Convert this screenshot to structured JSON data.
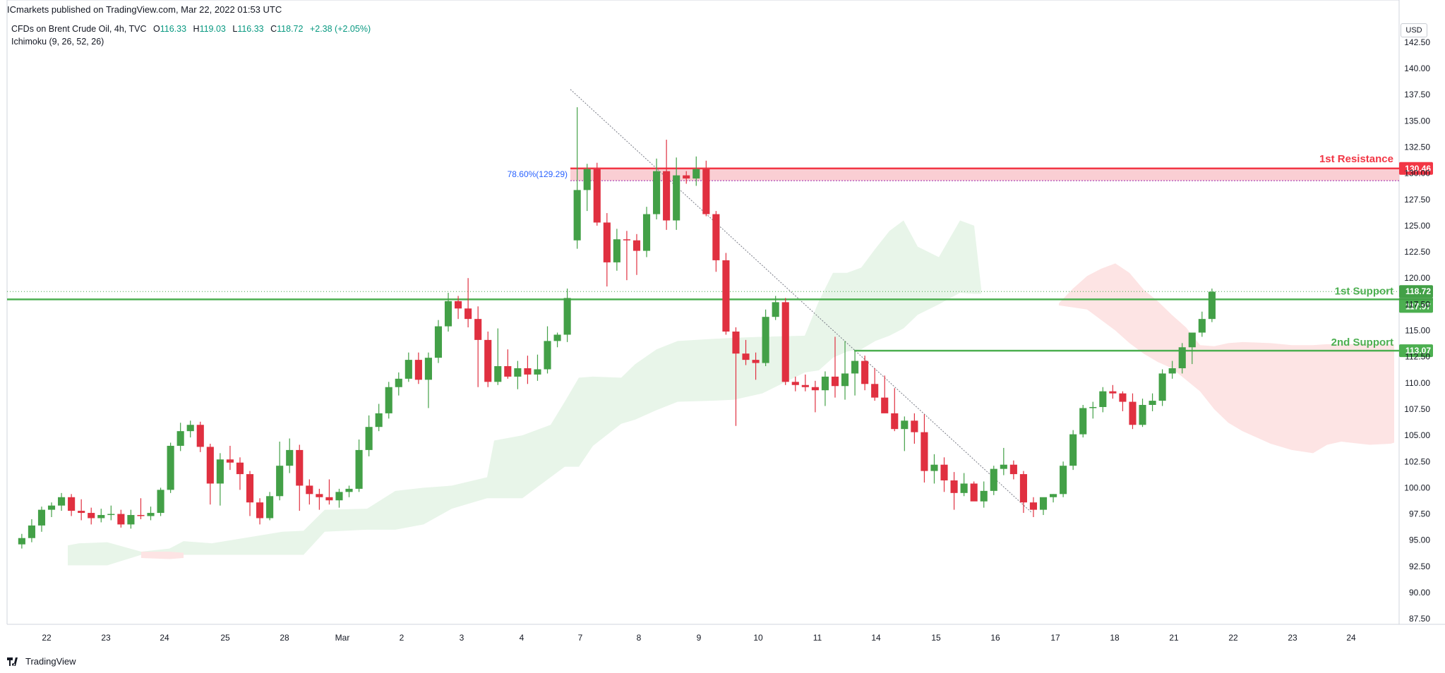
{
  "header": {
    "publisher_line": "ICmarkets published on TradingView.com, Mar 22, 2022 01:53 UTC"
  },
  "legend": {
    "symbol": "CFDs on Brent Crude Oil, 4h, TVC",
    "open_label": "O",
    "open": "116.33",
    "high_label": "H",
    "high": "119.03",
    "low_label": "L",
    "low": "116.33",
    "close_label": "C",
    "close": "118.72",
    "change": "+2.38 (+2.05%)",
    "indicator": "Ichimoku (9, 26, 52, 26)"
  },
  "currency": "USD",
  "footer": {
    "brand": "TradingView"
  },
  "colors": {
    "up": "#43a047",
    "down": "#e03040",
    "resistance": "#f23645",
    "support": "#4caf50",
    "cloud_green": "#e8f5e9",
    "cloud_red": "#fde4e4",
    "fib": "#2962ff",
    "price_line": "#43a047"
  },
  "chart_data": {
    "type": "candlestick",
    "y_ticks": [
      "87.50",
      "90.00",
      "92.50",
      "95.00",
      "97.50",
      "100.00",
      "102.50",
      "105.00",
      "107.50",
      "110.00",
      "112.50",
      "115.00",
      "117.50",
      "120.00",
      "122.50",
      "125.00",
      "127.50",
      "130.00",
      "132.50",
      "135.00",
      "137.50",
      "140.00",
      "142.50"
    ],
    "ylim": [
      86,
      143.5
    ],
    "x_ticks": [
      "22",
      "23",
      "24",
      "25",
      "28",
      "Mar",
      "2",
      "3",
      "4",
      "7",
      "8",
      "9",
      "10",
      "11",
      "14",
      "15",
      "16",
      "17",
      "18",
      "21",
      "22",
      "23",
      "24"
    ],
    "bars_per_day": 6,
    "annotations": {
      "resistance_label": "1st Resistance",
      "resistance_value": "130.46",
      "resistance": 130.46,
      "support1_label": "1st Support",
      "support1_value": "117.97",
      "support1": 117.97,
      "support2_label": "2nd Support",
      "support2_value": "113.07",
      "support2": 113.07,
      "fib_label": "78.60%(129.29)",
      "fib_value": 129.29,
      "last_price": "118.72",
      "last_price_value": 118.72,
      "countdown": "06:50"
    },
    "ohlc": [
      [
        94.6,
        95.6,
        94.2,
        95.2
      ],
      [
        95.2,
        97.0,
        94.8,
        96.4
      ],
      [
        96.4,
        98.2,
        95.8,
        97.9
      ],
      [
        97.9,
        98.6,
        97.2,
        98.3
      ],
      [
        98.3,
        99.5,
        97.8,
        99.1
      ],
      [
        99.1,
        99.4,
        97.3,
        97.8
      ],
      [
        97.8,
        98.9,
        96.9,
        97.6
      ],
      [
        97.6,
        98.1,
        96.5,
        97.1
      ],
      [
        97.1,
        98.0,
        96.7,
        97.4
      ],
      [
        97.4,
        98.3,
        96.9,
        97.5
      ],
      [
        97.5,
        97.9,
        96.2,
        96.5
      ],
      [
        96.5,
        97.9,
        96.1,
        97.4
      ],
      [
        97.4,
        99.0,
        97.0,
        97.3
      ],
      [
        97.3,
        98.2,
        96.9,
        97.6
      ],
      [
        97.6,
        100.0,
        97.3,
        99.8
      ],
      [
        99.8,
        104.3,
        99.5,
        104.0
      ],
      [
        104.0,
        106.2,
        103.5,
        105.4
      ],
      [
        105.4,
        106.4,
        104.8,
        106.0
      ],
      [
        106.0,
        106.3,
        103.4,
        103.9
      ],
      [
        103.9,
        104.2,
        98.4,
        100.4
      ],
      [
        100.4,
        103.3,
        98.3,
        102.7
      ],
      [
        102.7,
        104.0,
        101.7,
        102.4
      ],
      [
        102.4,
        102.9,
        99.8,
        101.3
      ],
      [
        101.3,
        101.6,
        97.3,
        98.6
      ],
      [
        98.6,
        99.0,
        96.5,
        97.1
      ],
      [
        97.1,
        99.6,
        96.9,
        99.2
      ],
      [
        99.2,
        104.4,
        98.8,
        102.1
      ],
      [
        102.1,
        104.7,
        101.4,
        103.6
      ],
      [
        103.6,
        104.1,
        97.8,
        100.2
      ],
      [
        100.2,
        100.8,
        98.4,
        99.4
      ],
      [
        99.4,
        99.9,
        97.9,
        99.1
      ],
      [
        99.1,
        100.8,
        98.4,
        98.8
      ],
      [
        98.8,
        99.9,
        98.1,
        99.6
      ],
      [
        99.6,
        100.2,
        99.1,
        99.9
      ],
      [
        99.9,
        104.6,
        99.6,
        103.6
      ],
      [
        103.6,
        106.9,
        103.0,
        105.8
      ],
      [
        105.8,
        108.0,
        105.4,
        107.1
      ],
      [
        107.1,
        110.1,
        106.6,
        109.6
      ],
      [
        109.6,
        111.0,
        108.8,
        110.4
      ],
      [
        110.4,
        112.9,
        110.1,
        112.2
      ],
      [
        112.2,
        112.9,
        109.9,
        110.3
      ],
      [
        110.3,
        112.9,
        107.6,
        112.4
      ],
      [
        112.4,
        116.0,
        111.9,
        115.4
      ],
      [
        115.4,
        118.6,
        114.9,
        117.8
      ],
      [
        117.8,
        118.3,
        116.1,
        117.1
      ],
      [
        117.1,
        120.0,
        115.3,
        116.1
      ],
      [
        116.1,
        117.3,
        109.6,
        114.1
      ],
      [
        114.1,
        114.9,
        109.6,
        110.1
      ],
      [
        110.1,
        115.2,
        109.8,
        111.6
      ],
      [
        111.6,
        113.2,
        110.4,
        110.6
      ],
      [
        110.6,
        112.1,
        109.4,
        111.4
      ],
      [
        111.4,
        112.6,
        109.9,
        110.8
      ],
      [
        110.8,
        112.7,
        110.2,
        111.3
      ],
      [
        111.3,
        115.4,
        110.9,
        114.0
      ],
      [
        114.0,
        114.8,
        113.4,
        114.6
      ],
      [
        114.6,
        119.0,
        113.9,
        118.1
      ],
      [
        123.6,
        136.3,
        122.8,
        128.4
      ],
      [
        128.4,
        130.9,
        126.4,
        130.4
      ],
      [
        130.4,
        131.0,
        125.0,
        125.3
      ],
      [
        125.3,
        126.2,
        119.2,
        121.5
      ],
      [
        121.5,
        124.7,
        120.7,
        123.7
      ],
      [
        123.7,
        124.5,
        119.8,
        123.6
      ],
      [
        123.6,
        124.2,
        120.3,
        122.6
      ],
      [
        122.6,
        126.8,
        122.0,
        126.1
      ],
      [
        126.1,
        131.4,
        125.6,
        130.2
      ],
      [
        130.2,
        133.2,
        124.6,
        125.5
      ],
      [
        125.5,
        131.5,
        124.6,
        129.8
      ],
      [
        129.8,
        130.2,
        129.0,
        129.5
      ],
      [
        129.5,
        131.6,
        128.8,
        130.4
      ],
      [
        130.4,
        131.2,
        125.9,
        126.1
      ],
      [
        126.1,
        126.4,
        120.6,
        121.7
      ],
      [
        121.7,
        122.4,
        114.6,
        114.9
      ],
      [
        114.9,
        115.3,
        105.9,
        112.8
      ],
      [
        112.8,
        114.1,
        111.7,
        112.2
      ],
      [
        112.2,
        112.9,
        110.3,
        111.9
      ],
      [
        111.9,
        117.0,
        111.6,
        116.3
      ],
      [
        116.3,
        118.3,
        116.0,
        117.7
      ],
      [
        117.7,
        118.1,
        109.8,
        110.1
      ],
      [
        110.1,
        110.6,
        109.2,
        109.8
      ],
      [
        109.8,
        110.8,
        109.2,
        109.6
      ],
      [
        109.6,
        110.2,
        107.2,
        109.3
      ],
      [
        109.3,
        111.1,
        107.8,
        110.6
      ],
      [
        110.6,
        114.4,
        108.6,
        109.7
      ],
      [
        109.7,
        114.0,
        108.4,
        110.9
      ],
      [
        110.9,
        113.0,
        108.8,
        112.1
      ],
      [
        112.1,
        112.6,
        109.3,
        109.9
      ],
      [
        109.9,
        111.4,
        108.3,
        108.6
      ],
      [
        108.6,
        110.7,
        107.6,
        107.1
      ],
      [
        107.1,
        109.5,
        105.4,
        105.6
      ],
      [
        105.6,
        106.8,
        103.5,
        106.4
      ],
      [
        106.4,
        107.1,
        104.2,
        105.3
      ],
      [
        105.3,
        107.0,
        100.5,
        101.6
      ],
      [
        101.6,
        103.2,
        100.4,
        102.2
      ],
      [
        102.2,
        102.9,
        99.6,
        100.7
      ],
      [
        100.7,
        101.5,
        97.9,
        99.5
      ],
      [
        99.5,
        101.4,
        99.2,
        100.4
      ],
      [
        100.4,
        100.6,
        98.8,
        98.7
      ],
      [
        98.7,
        100.6,
        98.1,
        99.7
      ],
      [
        99.7,
        102.1,
        99.3,
        101.8
      ],
      [
        101.8,
        103.8,
        101.2,
        102.2
      ],
      [
        102.2,
        102.6,
        100.8,
        101.3
      ],
      [
        101.3,
        101.6,
        97.6,
        98.6
      ],
      [
        98.6,
        99.1,
        97.2,
        97.9
      ],
      [
        97.9,
        99.0,
        97.4,
        99.1
      ],
      [
        99.1,
        99.4,
        98.6,
        99.4
      ],
      [
        99.4,
        102.5,
        99.1,
        102.1
      ],
      [
        102.1,
        105.5,
        101.7,
        105.1
      ],
      [
        105.1,
        107.9,
        104.8,
        107.6
      ],
      [
        107.6,
        108.2,
        106.6,
        107.7
      ],
      [
        107.7,
        109.6,
        107.2,
        109.2
      ],
      [
        109.2,
        109.8,
        108.5,
        109.0
      ],
      [
        109.0,
        109.2,
        107.3,
        108.2
      ],
      [
        108.2,
        109.0,
        105.6,
        106.0
      ],
      [
        106.0,
        108.5,
        105.8,
        107.9
      ],
      [
        107.9,
        109.0,
        107.3,
        108.3
      ],
      [
        108.3,
        111.3,
        107.8,
        110.9
      ],
      [
        110.9,
        112.1,
        110.4,
        111.4
      ],
      [
        111.4,
        113.8,
        110.9,
        113.4
      ],
      [
        113.4,
        114.6,
        111.8,
        114.8
      ],
      [
        114.8,
        116.8,
        114.4,
        116.1
      ],
      [
        116.1,
        119.0,
        115.8,
        118.7
      ]
    ],
    "cloud_green": [
      [
        96,
        94.5,
        92.6
      ],
      [
        104,
        94.6,
        92.6
      ],
      [
        112,
        94.7,
        92.6
      ],
      [
        152,
        94.8,
        92.6
      ],
      [
        200,
        93.9,
        93.6
      ],
      [
        240,
        94.2,
        93.6
      ],
      [
        260,
        94.9,
        93.6
      ],
      [
        300,
        94.7,
        93.6
      ],
      [
        400,
        95.8,
        93.6
      ],
      [
        430,
        95.9,
        93.6
      ],
      [
        460,
        97.9,
        95.8
      ],
      [
        520,
        98.0,
        96.0
      ],
      [
        560,
        99.7,
        96.0
      ],
      [
        600,
        100.0,
        96.5
      ],
      [
        640,
        100.2,
        98.0
      ],
      [
        690,
        101.0,
        99.0
      ],
      [
        700,
        104.5,
        99.0
      ],
      [
        740,
        105.0,
        99.0
      ],
      [
        780,
        106.0,
        101.0
      ],
      [
        800,
        108.2,
        102.0
      ],
      [
        820,
        110.5,
        102.0
      ],
      [
        840,
        110.6,
        104.0
      ],
      [
        880,
        110.5,
        106.1
      ],
      [
        900,
        111.8,
        106.5
      ],
      [
        930,
        113.2,
        107.4
      ],
      [
        960,
        114.0,
        108.2
      ],
      [
        1010,
        114.2,
        108.3
      ],
      [
        1040,
        114.3,
        108.4
      ],
      [
        1080,
        114.4,
        109.0
      ],
      [
        1140,
        114.5,
        111.0
      ],
      [
        1160,
        117.8,
        111.2
      ],
      [
        1180,
        120.5,
        112.4
      ],
      [
        1200,
        120.5,
        113.0
      ],
      [
        1220,
        121.0,
        113.2
      ],
      [
        1240,
        122.8,
        114.0
      ],
      [
        1260,
        124.5,
        114.5
      ],
      [
        1280,
        125.5,
        115.2
      ],
      [
        1300,
        123.0,
        116.5
      ],
      [
        1330,
        122.0,
        117.5
      ],
      [
        1360,
        125.5,
        118.6
      ],
      [
        1380,
        125.0,
        118.5
      ],
      [
        1390,
        119.0,
        118.5
      ]
    ],
    "cloud_red": [
      [
        200,
        93.9,
        93.3
      ],
      [
        240,
        93.9,
        93.2
      ],
      [
        260,
        93.8,
        93.3
      ],
      [
        1500,
        117.6,
        117.4
      ],
      [
        1520,
        119.0,
        117.2
      ],
      [
        1540,
        120.2,
        117.0
      ],
      [
        1560,
        120.9,
        116.0
      ],
      [
        1580,
        121.4,
        115.0
      ],
      [
        1600,
        120.5,
        113.8
      ],
      [
        1620,
        118.9,
        112.8
      ],
      [
        1640,
        117.8,
        112.0
      ],
      [
        1660,
        116.5,
        111.4
      ],
      [
        1680,
        115.3,
        110.3
      ],
      [
        1700,
        113.6,
        109.2
      ],
      [
        1720,
        113.5,
        107.5
      ],
      [
        1740,
        113.8,
        106.2
      ],
      [
        1760,
        113.9,
        105.4
      ],
      [
        1800,
        113.8,
        104.2
      ],
      [
        1830,
        113.6,
        103.6
      ],
      [
        1860,
        113.6,
        103.3
      ],
      [
        1880,
        113.7,
        104.1
      ],
      [
        1900,
        113.7,
        104.4
      ],
      [
        1940,
        113.7,
        104.1
      ],
      [
        1970,
        113.7,
        104.2
      ],
      [
        1975,
        113.7,
        104.3
      ]
    ]
  }
}
